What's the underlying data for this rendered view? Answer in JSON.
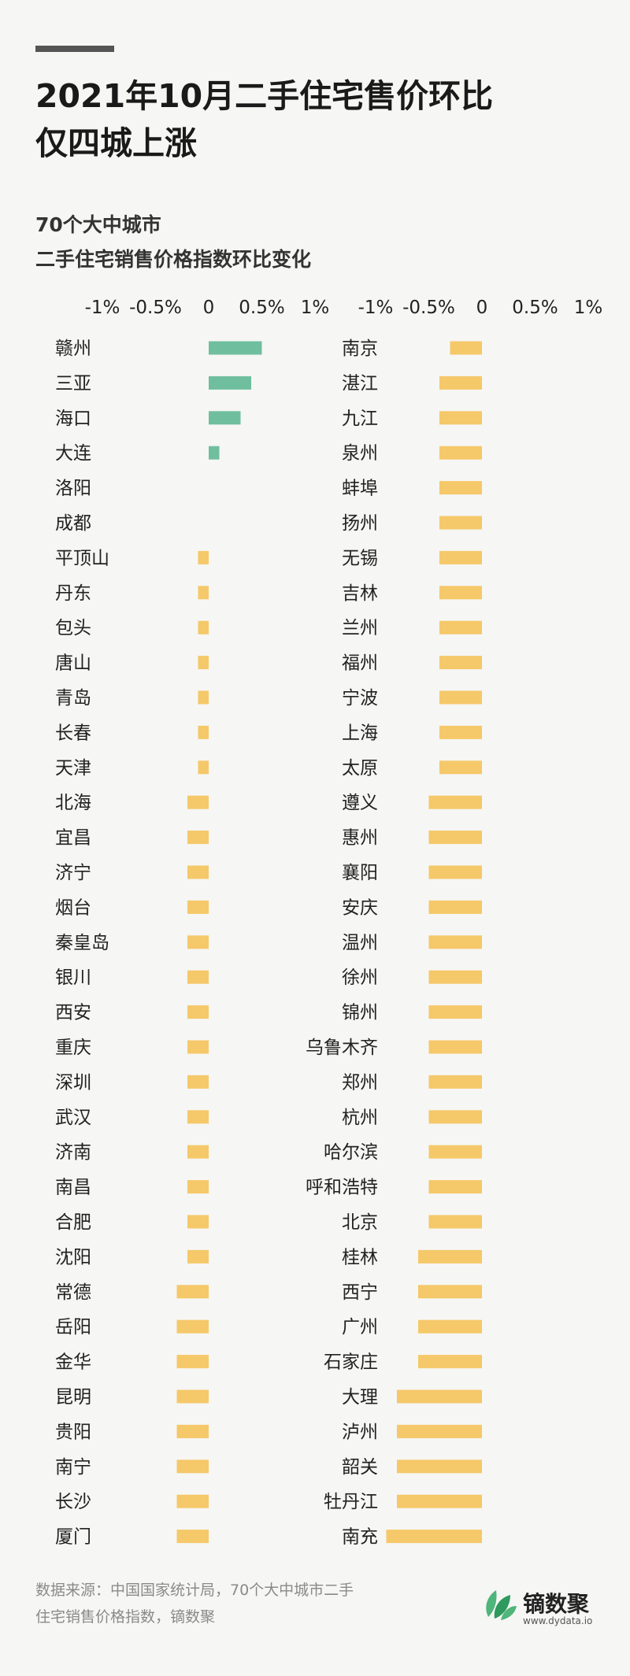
{
  "header": {
    "title_line1": "2021年10月二手住宅售价环比",
    "title_line2": "仅四城上涨",
    "subtitle_line1": "70个大中城市",
    "subtitle_line2": "二手住宅销售价格指数环比变化"
  },
  "footer": {
    "source_line1": "数据来源：中国国家统计局，70个大中城市二手",
    "source_line2": "住宅销售价格指数，镝数聚",
    "logo_text": "镝数聚",
    "logo_url": "www.dydata.io"
  },
  "colors": {
    "positive": "#6fbf9f",
    "negative": "#f5c869",
    "logo_green": "#2f9a5f"
  },
  "chart_data": [
    {
      "type": "bar",
      "orientation": "horizontal",
      "xlim": [
        -1,
        1
      ],
      "x_ticks": [
        "-1%",
        "-0.5%",
        "0",
        "0.5%",
        "1%"
      ],
      "categories": [
        "赣州",
        "三亚",
        "海口",
        "大连",
        "洛阳",
        "成都",
        "平顶山",
        "丹东",
        "包头",
        "唐山",
        "青岛",
        "长春",
        "天津",
        "北海",
        "宜昌",
        "济宁",
        "烟台",
        "秦皇岛",
        "银川",
        "西安",
        "重庆",
        "深圳",
        "武汉",
        "济南",
        "南昌",
        "合肥",
        "沈阳",
        "常德",
        "岳阳",
        "金华",
        "昆明",
        "贵阳",
        "南宁",
        "长沙",
        "厦门"
      ],
      "values": [
        0.5,
        0.4,
        0.3,
        0.1,
        0,
        0,
        -0.1,
        -0.1,
        -0.1,
        -0.1,
        -0.1,
        -0.1,
        -0.1,
        -0.2,
        -0.2,
        -0.2,
        -0.2,
        -0.2,
        -0.2,
        -0.2,
        -0.2,
        -0.2,
        -0.2,
        -0.2,
        -0.2,
        -0.2,
        -0.2,
        -0.3,
        -0.3,
        -0.3,
        -0.3,
        -0.3,
        -0.3,
        -0.3,
        -0.3
      ]
    },
    {
      "type": "bar",
      "orientation": "horizontal",
      "xlim": [
        -1,
        1
      ],
      "x_ticks": [
        "-1%",
        "-0.5%",
        "0",
        "0.5%",
        "1%"
      ],
      "categories": [
        "南京",
        "湛江",
        "九江",
        "泉州",
        "蚌埠",
        "扬州",
        "无锡",
        "吉林",
        "兰州",
        "福州",
        "宁波",
        "上海",
        "太原",
        "遵义",
        "惠州",
        "襄阳",
        "安庆",
        "温州",
        "徐州",
        "锦州",
        "乌鲁木齐",
        "郑州",
        "杭州",
        "哈尔滨",
        "呼和浩特",
        "北京",
        "桂林",
        "西宁",
        "广州",
        "石家庄",
        "大理",
        "泸州",
        "韶关",
        "牡丹江",
        "南充"
      ],
      "values": [
        -0.3,
        -0.4,
        -0.4,
        -0.4,
        -0.4,
        -0.4,
        -0.4,
        -0.4,
        -0.4,
        -0.4,
        -0.4,
        -0.4,
        -0.4,
        -0.5,
        -0.5,
        -0.5,
        -0.5,
        -0.5,
        -0.5,
        -0.5,
        -0.5,
        -0.5,
        -0.5,
        -0.5,
        -0.5,
        -0.5,
        -0.6,
        -0.6,
        -0.6,
        -0.6,
        -0.8,
        -0.8,
        -0.8,
        -0.8,
        -0.9
      ]
    }
  ]
}
